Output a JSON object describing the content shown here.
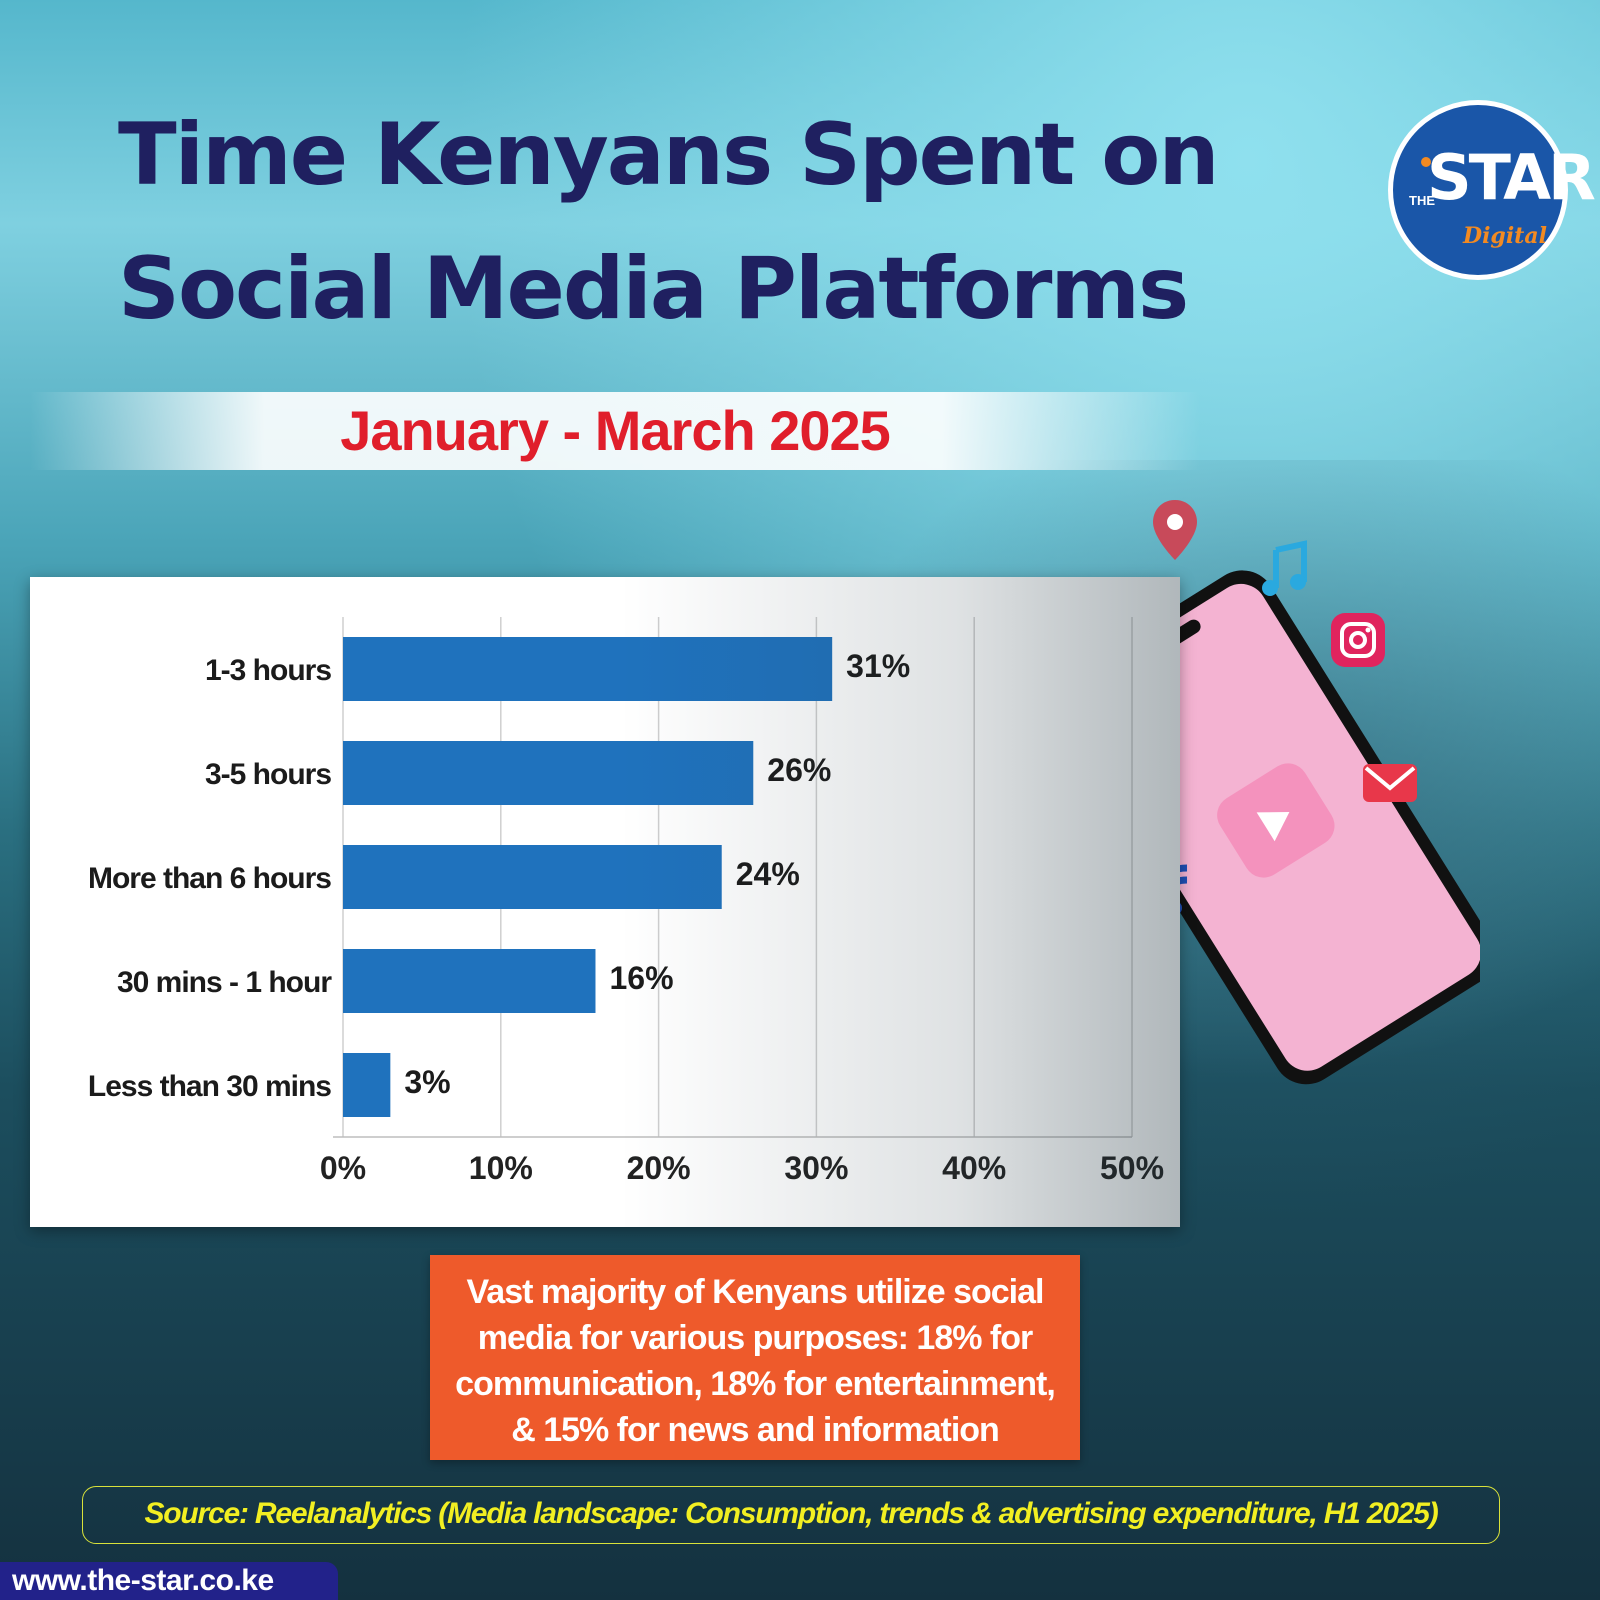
{
  "header": {
    "title_line1": "Time Kenyans Spent on",
    "title_line2": "Social Media Platforms",
    "period": "January - March 2025"
  },
  "logo": {
    "the": "THE",
    "name": "STAR",
    "sub": "Digital"
  },
  "chart_data": {
    "type": "bar",
    "orientation": "horizontal",
    "categories": [
      "1-3 hours",
      "3-5 hours",
      "More than 6 hours",
      "30 mins - 1 hour",
      "Less than 30 mins"
    ],
    "values": [
      31,
      26,
      24,
      16,
      3
    ],
    "value_labels": [
      "31%",
      "26%",
      "24%",
      "16%",
      "3%"
    ],
    "xlim": [
      0,
      50
    ],
    "x_ticks": [
      "0%",
      "10%",
      "20%",
      "30%",
      "40%",
      "50%"
    ],
    "grid": "vertical",
    "bar_color": "#1f72bd"
  },
  "callout": {
    "line1": "Vast majority of Kenyans utilize social",
    "line2": "media for various purposes: 18% for",
    "line3": "communication, 18% for entertainment,",
    "line4": "& 15% for news and information"
  },
  "footer": {
    "source": "Source: Reelanalytics (Media landscape: Consumption, trends & advertising expenditure, H1 2025)",
    "url": "www.the-star.co.ke"
  },
  "colors": {
    "title": "#1f2060",
    "period": "#e01e2b",
    "callout_bg": "#ee5a2b",
    "source_text": "#f2ef22"
  },
  "icons": [
    "location-pin-icon",
    "music-note-icon",
    "instagram-icon",
    "facebook-icon",
    "chat-bubbles-icon",
    "mail-icon",
    "wifi-icon",
    "cloud-upload-icon",
    "video-icon",
    "smartphone-icon"
  ]
}
